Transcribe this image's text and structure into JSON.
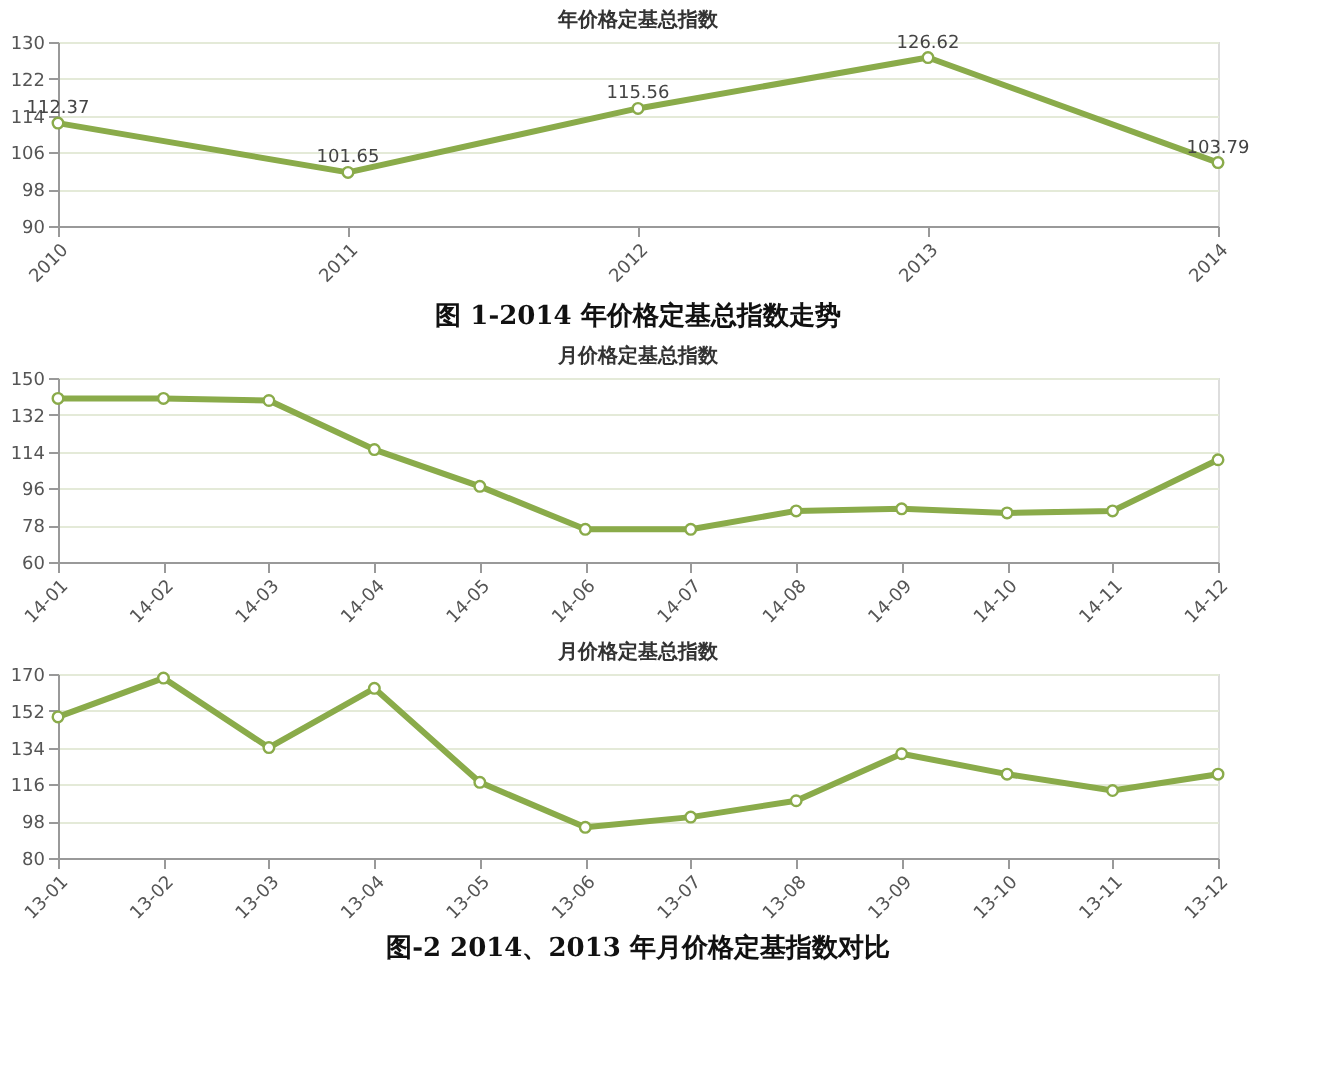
{
  "chart_data": [
    {
      "type": "line",
      "title": "年价格定基总指数",
      "categories": [
        "2010",
        "2011",
        "2012",
        "2013",
        "2014"
      ],
      "values": [
        112.37,
        101.65,
        115.56,
        126.62,
        103.79
      ],
      "line_style": "solid",
      "color": "#8aab4a",
      "ylim": [
        90,
        130
      ],
      "yticks": [
        90,
        98,
        106,
        114,
        122,
        130
      ],
      "grid": "y",
      "marker": "circle",
      "data_labels": true,
      "annotations": [
        "图 1-2014 年价格定基总指数走势"
      ]
    },
    {
      "type": "line",
      "title": "月价格定基总指数",
      "categories": [
        "14-01",
        "14-02",
        "14-03",
        "14-04",
        "14-05",
        "14-06",
        "14-07",
        "14-08",
        "14-09",
        "14-10",
        "14-11",
        "14-12"
      ],
      "values": [
        140,
        140,
        139,
        115,
        97,
        76,
        76,
        85,
        86,
        84,
        85,
        110
      ],
      "line_style": "solid",
      "color": "#8aab4a",
      "ylim": [
        60,
        150
      ],
      "yticks": [
        60,
        78,
        96,
        114,
        132,
        150
      ],
      "grid": "y",
      "marker": "circle"
    },
    {
      "type": "line",
      "title": "月价格定基总指数",
      "categories": [
        "13-01",
        "13-02",
        "13-03",
        "13-04",
        "13-05",
        "13-06",
        "13-07",
        "13-08",
        "13-09",
        "13-10",
        "13-11",
        "13-12"
      ],
      "values": [
        149,
        168,
        134,
        163,
        117,
        95,
        100,
        108,
        131,
        121,
        113,
        121
      ],
      "line_style": "solid",
      "color": "#8aab4a",
      "ylim": [
        80,
        170
      ],
      "yticks": [
        80,
        98,
        116,
        134,
        152,
        170
      ],
      "grid": "y",
      "marker": "circle",
      "annotations": [
        "图-2 2014、2013 年月价格定基指数对比"
      ]
    }
  ]
}
